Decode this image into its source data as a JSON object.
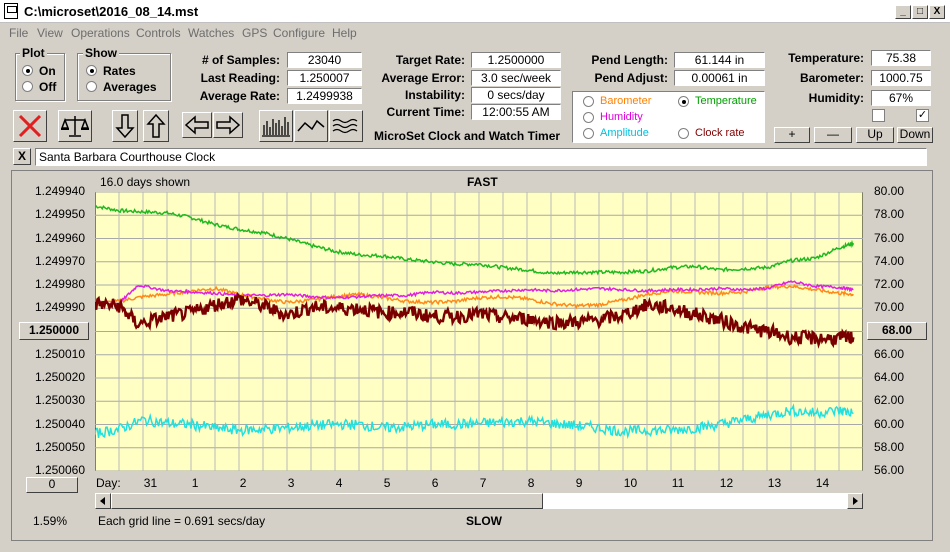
{
  "window": {
    "title": "C:\\microset\\2016_08_14.mst",
    "min_label": "_",
    "max_label": "□",
    "close_label": "X"
  },
  "menu": [
    "File",
    "View",
    "Operations",
    "Controls",
    "Watches",
    "GPS",
    "Configure",
    "Help"
  ],
  "plot_group": {
    "title": "Plot",
    "options": [
      "On",
      "Off"
    ],
    "selected": "On"
  },
  "show_group": {
    "title": "Show",
    "options": [
      "Rates",
      "Averages"
    ],
    "selected": "Rates"
  },
  "stats": {
    "samples_label": "# of Samples:",
    "samples_value": "23040",
    "last_reading_label": "Last Reading:",
    "last_reading_value": "1.250007",
    "average_rate_label": "Average Rate:",
    "average_rate_value": "1.2499938",
    "target_rate_label": "Target Rate:",
    "target_rate_value": "1.2500000",
    "average_error_label": "Average Error:",
    "average_error_value": "3.0 sec/week",
    "instability_label": "Instability:",
    "instability_value": "0 secs/day",
    "current_time_label": "Current Time:",
    "current_time_value": "12:00:55 AM",
    "pend_length_label": "Pend Length:",
    "pend_length_value": "61.144 in",
    "pend_adjust_label": "Pend Adjust:",
    "pend_adjust_value": "0.00061 in",
    "temperature_label": "Temperature:",
    "temperature_value": "75.38",
    "barometer_label": "Barometer:",
    "barometer_value": "1000.75",
    "humidity_label": "Humidity:",
    "humidity_value": "67%"
  },
  "app_caption": "MicroSet Clock and Watch Timer",
  "sensor_options": [
    {
      "label": "Barometer",
      "color": "#ff8000",
      "selected": false
    },
    {
      "label": "Temperature",
      "color": "#00a000",
      "selected": true
    },
    {
      "label": "Humidity",
      "color": "#e000e0",
      "selected": false
    },
    {
      "label": "Amplitude",
      "color": "#00c0e0",
      "selected": false
    },
    {
      "label": "Clock rate",
      "color": "#800000",
      "selected": false
    }
  ],
  "scale_buttons": {
    "plus": "+",
    "minus": "—",
    "up": "Up",
    "down": "Down"
  },
  "checkbox2_mark": "✓",
  "watch_name": "Santa Barbara Courthouse Clock",
  "clear_label": "X",
  "toolbar_icons": [
    "cancel-icon",
    "balance-scale-icon",
    "arrow-down-icon",
    "arrow-up-icon",
    "arrow-left-icon",
    "arrow-right-icon",
    "bar-graph-icon",
    "line-graph-icon",
    "wave-graph-icon"
  ],
  "chart_data": {
    "type": "line",
    "title_top": "FAST",
    "title_bottom": "SLOW",
    "days_shown": "16.0 days shown",
    "grid_note": "Each grid line = 0.691 secs/day",
    "percent_label": "1.59%",
    "left_button_label": "1.250000",
    "right_button_label": "68.00",
    "bottom_left_button_label": "0",
    "day_axis_label": "Day:",
    "y_left_ticks": [
      "1.249940",
      "1.249950",
      "1.249960",
      "1.249970",
      "1.249980",
      "1.249990",
      "1.250000",
      "1.250010",
      "1.250020",
      "1.250030",
      "1.250040",
      "1.250050",
      "1.250060"
    ],
    "y_right_ticks": [
      "80.00",
      "78.00",
      "76.00",
      "74.00",
      "72.00",
      "70.00",
      "68.00",
      "66.00",
      "64.00",
      "62.00",
      "60.00",
      "58.00",
      "56.00"
    ],
    "x_tick_labels": [
      "31",
      "1",
      "2",
      "3",
      "4",
      "5",
      "6",
      "7",
      "8",
      "9",
      "10",
      "11",
      "12",
      "13",
      "14"
    ],
    "x_range_days": [
      0,
      16
    ],
    "x_tick_positions_days": [
      1.1,
      2.1,
      3.1,
      4.1,
      5.1,
      6.1,
      7.1,
      8.1,
      9.1,
      10.1,
      11.1,
      12.1,
      13.1,
      14.1,
      15.1
    ],
    "series": [
      {
        "key": "temperature",
        "color": "#1fb81f",
        "x": [
          0,
          0.5,
          1,
          1.5,
          2,
          2.5,
          3,
          3.5,
          4,
          4.5,
          5,
          5.5,
          6,
          6.5,
          7,
          7.5,
          8,
          8.5,
          9,
          9.5,
          10,
          10.5,
          11,
          11.5,
          12,
          12.5,
          13,
          13.5,
          14,
          14.5,
          15,
          15.5,
          15.8
        ],
        "y": [
          78.8,
          78.4,
          78.3,
          78.2,
          77.8,
          77.2,
          76.8,
          76.5,
          76.0,
          75.4,
          74.9,
          74.6,
          74.5,
          74.2,
          74.0,
          73.8,
          73.8,
          73.5,
          73.3,
          73.0,
          73.1,
          73.1,
          73.1,
          73.2,
          73.5,
          73.6,
          73.3,
          73.4,
          73.5,
          74.1,
          74.3,
          75.2,
          75.6
        ]
      },
      {
        "key": "barometer",
        "color": "#ff8a1a",
        "x": [
          0,
          0.5,
          1,
          1.5,
          2,
          2.5,
          3,
          3.5,
          4,
          4.5,
          5,
          5.5,
          6,
          6.5,
          7,
          7.5,
          8,
          8.5,
          9,
          9.5,
          10,
          10.5,
          11,
          11.5,
          12,
          12.5,
          13,
          13.5,
          14,
          14.5,
          15,
          15.5,
          15.8
        ],
        "y": [
          70.4,
          70.6,
          71.0,
          71.2,
          71.5,
          71.7,
          71.2,
          70.8,
          70.5,
          70.7,
          71.0,
          71.2,
          70.9,
          70.6,
          70.5,
          70.6,
          70.9,
          71.0,
          70.8,
          70.4,
          70.2,
          70.3,
          70.7,
          71.2,
          71.5,
          71.4,
          71.3,
          71.4,
          71.8,
          71.9,
          71.6,
          71.3,
          71.2
        ]
      },
      {
        "key": "humidity",
        "color": "#e020e0",
        "x": [
          0,
          0.5,
          0.9,
          1.5,
          2,
          2.5,
          3,
          3.5,
          4,
          4.5,
          5,
          5.5,
          6,
          6.5,
          7,
          7.5,
          8,
          8.5,
          9,
          9.5,
          10,
          10.5,
          11,
          11.5,
          12,
          12.5,
          13,
          13.5,
          14,
          14.5,
          15,
          15.5,
          15.8
        ],
        "y": [
          70.5,
          70.4,
          72.0,
          71.5,
          71.4,
          71.3,
          71.1,
          71.1,
          71.2,
          71.0,
          70.9,
          71.0,
          71.1,
          71.1,
          71.4,
          71.3,
          71.4,
          71.5,
          71.6,
          71.5,
          71.6,
          71.7,
          71.6,
          71.5,
          71.6,
          71.6,
          71.7,
          71.6,
          71.7,
          72.3,
          71.9,
          71.8,
          71.6
        ]
      },
      {
        "key": "amplitude",
        "color": "#22e0e0",
        "x": [
          0,
          0.5,
          1,
          1.5,
          2,
          2.5,
          3,
          3.5,
          4,
          4.5,
          5,
          5.5,
          6,
          6.5,
          7,
          7.5,
          8,
          8.5,
          9,
          9.5,
          10,
          10.5,
          11,
          11.5,
          12,
          12.5,
          13,
          13.5,
          14,
          14.5,
          15,
          15.5,
          15.8
        ],
        "y": [
          59.2,
          59.6,
          60.4,
          60.1,
          60.0,
          59.7,
          59.5,
          59.6,
          59.7,
          59.9,
          60.0,
          60.0,
          59.7,
          59.8,
          60.0,
          60.0,
          60.1,
          60.2,
          60.3,
          60.1,
          59.9,
          59.7,
          59.4,
          59.5,
          59.5,
          59.7,
          60.0,
          60.4,
          60.8,
          61.2,
          61.0,
          61.2,
          61.0
        ]
      },
      {
        "key": "clock-rate",
        "color": "#7a0000",
        "x": [
          0,
          0.5,
          0.9,
          1.5,
          2,
          2.5,
          3,
          3.5,
          4,
          4.5,
          5,
          5.5,
          6,
          6.5,
          7,
          7.5,
          8,
          8.5,
          9,
          9.5,
          10,
          10.5,
          11,
          11.5,
          12,
          12.5,
          13,
          13.5,
          14,
          14.5,
          15,
          15.5,
          15.8
        ],
        "y": [
          70.4,
          70.2,
          68.6,
          69.3,
          69.6,
          70.3,
          70.8,
          70.2,
          69.4,
          70.1,
          70.0,
          70.0,
          69.6,
          69.7,
          69.3,
          69.3,
          69.5,
          69.2,
          69.1,
          68.8,
          68.8,
          69.0,
          69.4,
          70.3,
          70.0,
          69.5,
          69.0,
          68.4,
          68.0,
          67.5,
          67.4,
          67.4,
          67.5
        ]
      }
    ]
  }
}
